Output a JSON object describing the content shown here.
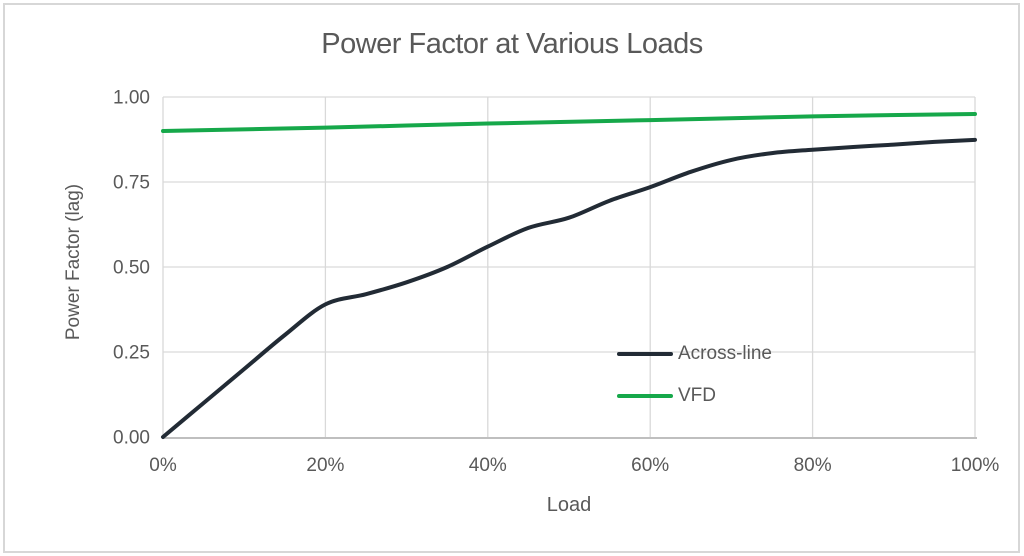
{
  "chart_data": {
    "type": "line",
    "title": "Power Factor at Various Loads",
    "xlabel": "Load",
    "ylabel": "Power Factor (lag)",
    "xlim": [
      0,
      100
    ],
    "ylim": [
      0,
      1
    ],
    "grid": true,
    "legend_position": "inside-right",
    "x_ticks": [
      {
        "value": 0,
        "label": "0%"
      },
      {
        "value": 20,
        "label": "20%"
      },
      {
        "value": 40,
        "label": "40%"
      },
      {
        "value": 60,
        "label": "60%"
      },
      {
        "value": 80,
        "label": "80%"
      },
      {
        "value": 100,
        "label": "100%"
      }
    ],
    "y_ticks": [
      {
        "value": 0,
        "label": "0.00"
      },
      {
        "value": 0.25,
        "label": "0.25"
      },
      {
        "value": 0.5,
        "label": "0.50"
      },
      {
        "value": 0.75,
        "label": "0.75"
      },
      {
        "value": 1,
        "label": "1.00"
      }
    ],
    "series": [
      {
        "name": "Across-line",
        "color": "#222b35",
        "points": [
          [
            0,
            0.0
          ],
          [
            5,
            0.1
          ],
          [
            10,
            0.2
          ],
          [
            15,
            0.3
          ],
          [
            20,
            0.39
          ],
          [
            25,
            0.42
          ],
          [
            30,
            0.455
          ],
          [
            35,
            0.5
          ],
          [
            40,
            0.56
          ],
          [
            45,
            0.615
          ],
          [
            50,
            0.645
          ],
          [
            55,
            0.695
          ],
          [
            60,
            0.735
          ],
          [
            65,
            0.78
          ],
          [
            70,
            0.815
          ],
          [
            75,
            0.835
          ],
          [
            80,
            0.845
          ],
          [
            85,
            0.853
          ],
          [
            90,
            0.86
          ],
          [
            95,
            0.868
          ],
          [
            100,
            0.874
          ]
        ]
      },
      {
        "name": "VFD",
        "color": "#16a84a",
        "points": [
          [
            0,
            0.9
          ],
          [
            20,
            0.91
          ],
          [
            40,
            0.922
          ],
          [
            60,
            0.932
          ],
          [
            80,
            0.943
          ],
          [
            100,
            0.95
          ]
        ]
      }
    ],
    "colors": {
      "gridline": "#d9d9d9",
      "axis_line": "#bfbfbf",
      "text": "#595959",
      "frame_border": "#d7d7d7"
    }
  }
}
